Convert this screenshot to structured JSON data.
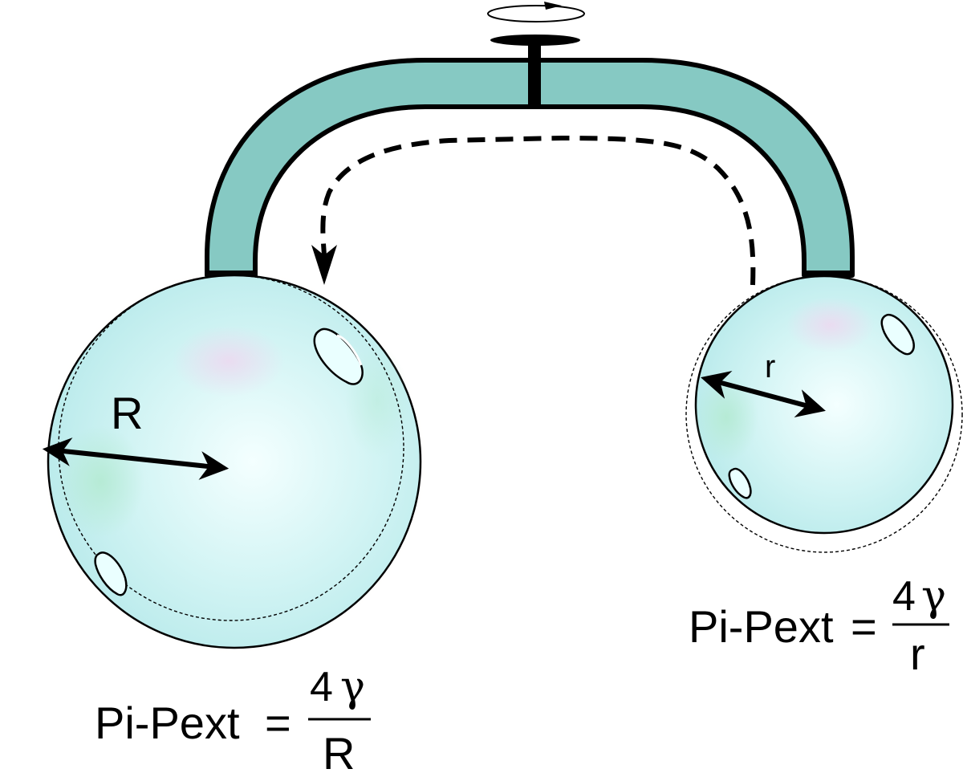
{
  "colors": {
    "tube_fill": "#86c9c3",
    "bubble_fill": "#bfeff0",
    "bubble_highlight": "#f4ffff",
    "bubble_tint_pink": "#ead8ef",
    "bubble_tint_green": "#b9ebd6",
    "outline": "#000000"
  },
  "icons": {
    "valve": "valve-icon",
    "rotation": "rotation-arrow-icon",
    "flow_arrow": "dashed-flow-arrow-icon"
  },
  "left_bubble": {
    "radius_label": "R",
    "equation": {
      "lhs": "Pi-Pext",
      "equals": "=",
      "numerator_coef": "4",
      "numerator_symbol": "γ",
      "denominator": "R"
    }
  },
  "right_bubble": {
    "radius_label": "r",
    "equation": {
      "lhs": "Pi-Pext",
      "equals": "=",
      "numerator_coef": "4",
      "numerator_symbol": "γ",
      "denominator": "r"
    }
  }
}
